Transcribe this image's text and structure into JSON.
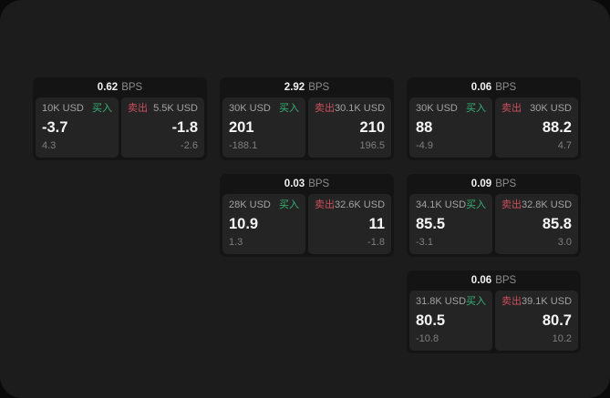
{
  "labels": {
    "unit": "BPS",
    "buy": "买入",
    "sell": "卖出"
  },
  "colors": {
    "buy_green": "#35b273",
    "sell_red": "#cb4e5c",
    "page_background": "#1c1c1c",
    "card_background": "#141414",
    "panel_background": "#242424"
  },
  "cards": [
    {
      "bps": "0.62",
      "buy": {
        "amount": "10K USD",
        "value": "-3.7",
        "sub": "4.3"
      },
      "sell": {
        "amount": "5.5K USD",
        "value": "-1.8",
        "sub": "-2.6"
      }
    },
    {
      "bps": "2.92",
      "buy": {
        "amount": "30K USD",
        "value": "201",
        "sub": "-188.1"
      },
      "sell": {
        "amount": "30.1K USD",
        "value": "210",
        "sub": "196.5"
      }
    },
    {
      "bps": "0.06",
      "buy": {
        "amount": "30K USD",
        "value": "88",
        "sub": "-4.9"
      },
      "sell": {
        "amount": "30K USD",
        "value": "88.2",
        "sub": "4.7"
      }
    },
    {
      "bps": "0.03",
      "buy": {
        "amount": "28K USD",
        "value": "10.9",
        "sub": "1.3"
      },
      "sell": {
        "amount": "32.6K USD",
        "value": "11",
        "sub": "-1.8"
      }
    },
    {
      "bps": "0.09",
      "buy": {
        "amount": "34.1K USD",
        "value": "85.5",
        "sub": "-3.1"
      },
      "sell": {
        "amount": "32.8K USD",
        "value": "85.8",
        "sub": "3.0"
      }
    },
    {
      "bps": "0.06",
      "buy": {
        "amount": "31.8K USD",
        "value": "80.5",
        "sub": "-10.8"
      },
      "sell": {
        "amount": "39.1K USD",
        "value": "80.7",
        "sub": "10.2"
      }
    }
  ]
}
